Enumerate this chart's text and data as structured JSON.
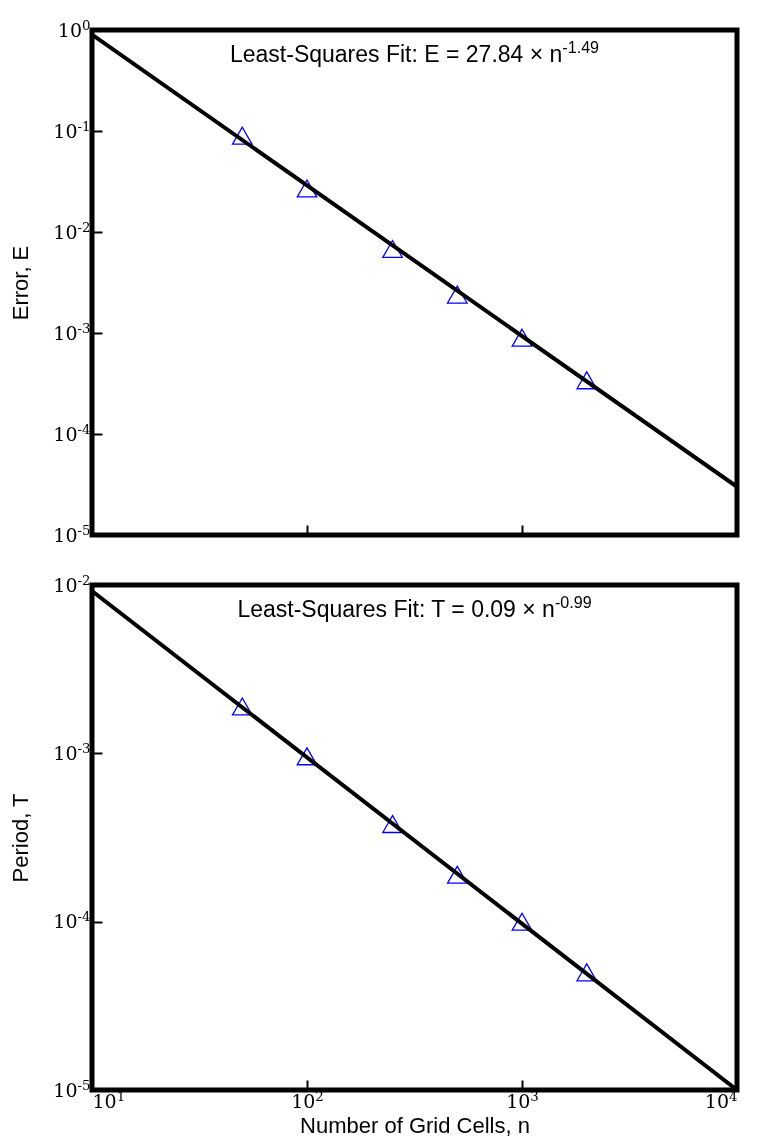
{
  "chart_data": [
    {
      "type": "scatter",
      "ylabel": "Error, E",
      "annotations": [
        "Least-Squares Fit: E = 27.84 × n$^{-1.49}$"
      ],
      "log": "xy",
      "grid": false,
      "tick_labels": "y",
      "xlim": [
        10,
        10000
      ],
      "xticks": [
        {
          "value": 10,
          "label": null
        },
        {
          "value": 100,
          "label": null
        },
        {
          "value": 1000,
          "label": null
        },
        {
          "value": 10000,
          "label": null
        }
      ],
      "ylim": [
        1e-05,
        1
      ],
      "yticks": [
        {
          "value": 1e-05,
          "label": "10$^{-5}$"
        },
        {
          "value": 0.0001,
          "label": "10$^{-4}$"
        },
        {
          "value": 0.001,
          "label": "10$^{-3}$"
        },
        {
          "value": 0.01,
          "label": "10$^{-2}$"
        },
        {
          "value": 0.1,
          "label": "10$^{-1}$"
        },
        {
          "value": 1,
          "label": "10$^{0}$"
        }
      ],
      "series": [
        {
          "type": "scatter",
          "color": "#0000ff",
          "marker": "triangle",
          "x": [
            50,
            100,
            250,
            500,
            1000,
            2000
          ],
          "values": [
            0.09,
            0.027,
            0.0068,
            0.0024,
            0.0009,
            0.00034
          ]
        },
        {
          "type": "line",
          "color": "#000000",
          "x": [
            10,
            10000
          ],
          "values": [
            0.9,
            3e-05
          ]
        }
      ]
    },
    {
      "type": "scatter",
      "xlabel": "Number of Grid Cells, n",
      "ylabel": "Period, T",
      "annotations": [
        "Least-Squares Fit: T = 0.09 × n$^{-0.99}$"
      ],
      "log": "xy",
      "grid": false,
      "xlim": [
        10,
        10000
      ],
      "xticks": [
        {
          "value": 10,
          "label": "10$^{1}$"
        },
        {
          "value": 100,
          "label": "10$^{2}$"
        },
        {
          "value": 1000,
          "label": "10$^{3}$"
        },
        {
          "value": 10000,
          "label": "10$^{4}$"
        }
      ],
      "ylim": [
        1e-05,
        0.01
      ],
      "yticks": [
        {
          "value": 1e-05,
          "label": "10$^{-5}$"
        },
        {
          "value": 0.0001,
          "label": "10$^{-4}$"
        },
        {
          "value": 0.001,
          "label": "10$^{-3}$"
        },
        {
          "value": 0.01,
          "label": "10$^{-2}$"
        }
      ],
      "series": [
        {
          "type": "scatter",
          "color": "#0000ff",
          "marker": "triangle",
          "x": [
            50,
            100,
            250,
            500,
            1000,
            2000
          ],
          "values": [
            0.0019,
            0.00096,
            0.00038,
            0.00019,
            0.0001,
            5e-05
          ]
        },
        {
          "type": "line",
          "color": "#000000",
          "x": [
            10,
            10000
          ],
          "values": [
            0.0092,
            1e-05
          ]
        }
      ]
    }
  ]
}
